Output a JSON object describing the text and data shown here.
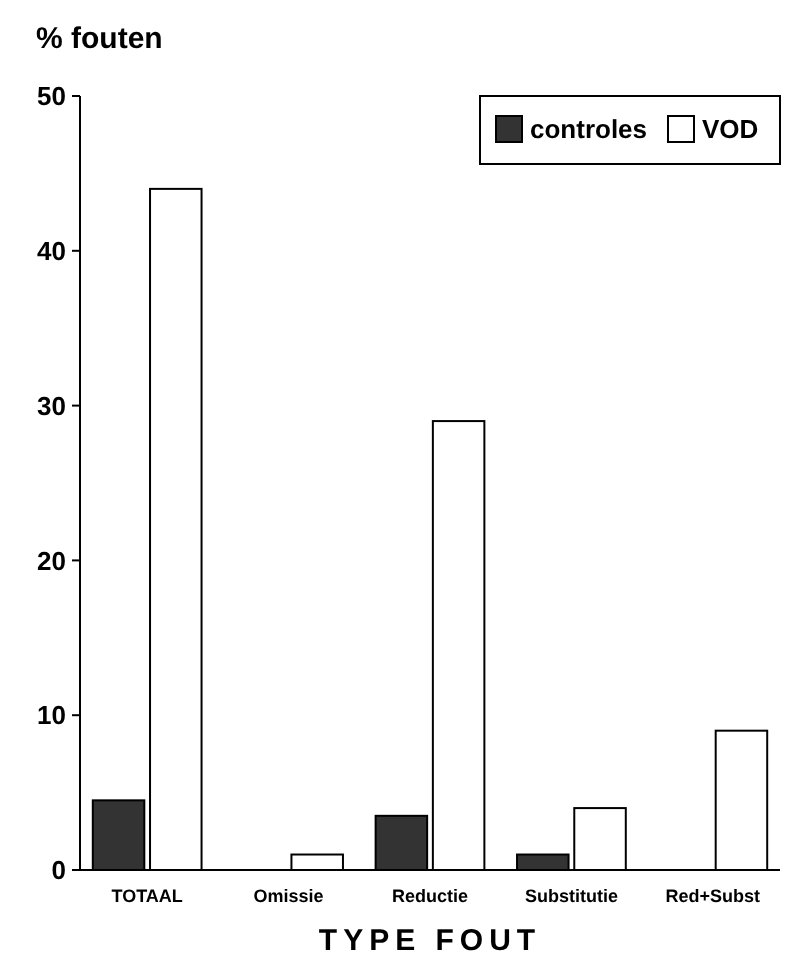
{
  "chart_data": {
    "type": "bar",
    "ylabel": "% fouten",
    "xlabel": "TYPE FOUT",
    "categories": [
      "TOTAAL",
      "Omissie",
      "Reductie",
      "Substitutie",
      "Red+Subst"
    ],
    "series": [
      {
        "name": "controles",
        "color": "#333333",
        "values": [
          4.5,
          0,
          3.5,
          1,
          0
        ]
      },
      {
        "name": "VOD",
        "color": "#ffffff",
        "values": [
          44,
          1,
          29,
          4,
          9
        ]
      }
    ],
    "ylim": [
      0,
      50
    ],
    "yticks": [
      0,
      10,
      20,
      30,
      40,
      50
    ],
    "legend": "top right",
    "grid": false
  }
}
